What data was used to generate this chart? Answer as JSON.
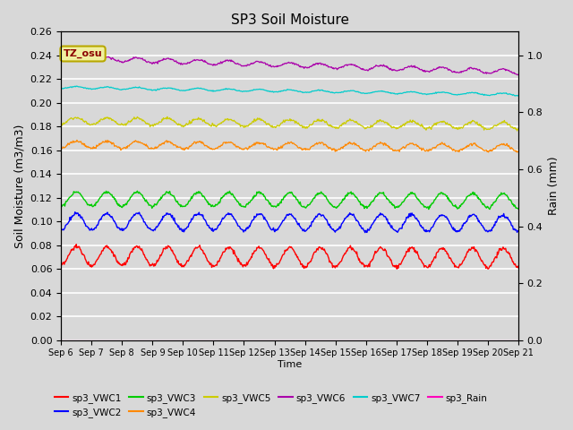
{
  "title": "SP3 Soil Moisture",
  "xlabel": "Time",
  "ylabel_left": "Soil Moisture (m3/m3)",
  "ylabel_right": "Rain (mm)",
  "ylim_left": [
    0.0,
    0.26
  ],
  "ylim_right": [
    0.0,
    1.0833
  ],
  "x_tick_labels": [
    "Sep 6",
    "Sep 7",
    "Sep 8",
    "Sep 9",
    "Sep 10",
    "Sep 11",
    "Sep 12",
    "Sep 13",
    "Sep 14",
    "Sep 15",
    "Sep 16",
    "Sep 17",
    "Sep 18",
    "Sep 19",
    "Sep 20",
    "Sep 21"
  ],
  "right_yticks": [
    0.0,
    0.2,
    0.4,
    0.6,
    0.8,
    1.0
  ],
  "right_ytick_labels": [
    "0.0",
    "0.2",
    "0.4",
    "0.6",
    "0.8",
    "1.0"
  ],
  "series_order": [
    "sp3_VWC1",
    "sp3_VWC2",
    "sp3_VWC3",
    "sp3_VWC4",
    "sp3_VWC5",
    "sp3_VWC6",
    "sp3_VWC7",
    "sp3_Rain"
  ],
  "colors": {
    "sp3_VWC1": "#ff0000",
    "sp3_VWC2": "#0000ff",
    "sp3_VWC3": "#00cc00",
    "sp3_VWC4": "#ff8800",
    "sp3_VWC5": "#cccc00",
    "sp3_VWC6": "#aa00aa",
    "sp3_VWC7": "#00cccc",
    "sp3_Rain": "#ff00bb"
  },
  "series_params": {
    "sp3_VWC1": {
      "base": 0.071,
      "amp": 0.008,
      "freq": 1.0,
      "trend": -0.0001,
      "smooth": false
    },
    "sp3_VWC2": {
      "base": 0.1,
      "amp": 0.007,
      "freq": 1.0,
      "trend": -0.0001,
      "smooth": false
    },
    "sp3_VWC3": {
      "base": 0.119,
      "amp": 0.006,
      "freq": 1.0,
      "trend": -0.0001,
      "smooth": false
    },
    "sp3_VWC4": {
      "base": 0.165,
      "amp": 0.003,
      "freq": 1.0,
      "trend": -0.0002,
      "smooth": true
    },
    "sp3_VWC5": {
      "base": 0.185,
      "amp": 0.003,
      "freq": 1.0,
      "trend": -0.0003,
      "smooth": true
    },
    "sp3_VWC6": {
      "base": 0.238,
      "amp": 0.002,
      "freq": 1.0,
      "trend": -0.0008,
      "smooth": true
    },
    "sp3_VWC7": {
      "base": 0.213,
      "amp": 0.001,
      "freq": 1.0,
      "trend": -0.0004,
      "smooth": true
    },
    "sp3_Rain": {
      "base": 0.0,
      "amp": 0.0,
      "freq": 0.0,
      "trend": 0.0,
      "smooth": true
    }
  },
  "background_color": "#d8d8d8",
  "plot_bg_color": "#d8d8d8",
  "grid_color": "#ffffff",
  "annotation_text": "TZ_osu",
  "annotation_color": "#8b0000",
  "annotation_bg": "#f0f0a0",
  "annotation_edge": "#b8a800"
}
